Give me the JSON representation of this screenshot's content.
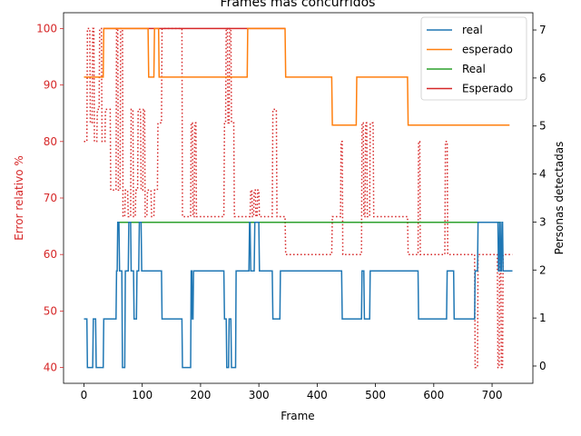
{
  "chart_data": {
    "type": "line",
    "title": "Frames más concurridos",
    "xlabel": "Frame",
    "ylabel_left": "Error relativo %",
    "ylabel_right": "Personas detectadas",
    "xlim": [
      -35,
      770
    ],
    "ylim_left": [
      37.2,
      102.8
    ],
    "ylim_right": [
      -0.36,
      7.36
    ],
    "x_ticks": [
      0,
      100,
      200,
      300,
      400,
      500,
      600,
      700
    ],
    "y_ticks_left": [
      40,
      50,
      60,
      70,
      80,
      90,
      100
    ],
    "y_ticks_right": [
      0,
      1,
      2,
      3,
      4,
      5,
      6,
      7
    ],
    "left_axis_color": "#d62728",
    "legend": {
      "placement": "top-right"
    },
    "series": [
      {
        "name": "real",
        "axis": "left",
        "color": "#1f77b4",
        "style": "solid",
        "x": [
          0,
          5,
          6,
          15,
          16,
          20,
          21,
          33,
          34,
          36,
          37,
          55,
          56,
          57,
          58,
          60,
          61,
          65,
          66,
          70,
          71,
          76,
          77,
          80,
          81,
          85,
          86,
          90,
          91,
          94,
          95,
          98,
          99,
          103,
          104,
          133,
          134,
          168,
          169,
          183,
          184,
          185,
          186,
          187,
          188,
          192,
          193,
          240,
          241,
          244,
          245,
          248,
          249,
          252,
          253,
          260,
          261,
          283,
          284,
          285,
          286,
          292,
          293,
          300,
          301,
          323,
          324,
          336,
          337,
          442,
          443,
          476,
          477,
          480,
          481,
          490,
          491,
          498,
          499,
          573,
          574,
          622,
          623,
          634,
          635,
          670,
          671,
          675,
          676,
          710,
          711,
          712,
          713,
          714,
          715,
          716,
          717,
          718,
          719,
          724,
          725,
          735
        ],
        "y": [
          48.6,
          48.6,
          40,
          40,
          48.6,
          48.6,
          40,
          40,
          48.6,
          48.6,
          48.6,
          48.6,
          57.1,
          57.1,
          65.7,
          65.7,
          57.1,
          57.1,
          40,
          40,
          57.1,
          57.1,
          65.7,
          65.7,
          57.1,
          57.1,
          48.6,
          48.6,
          57.1,
          57.1,
          65.7,
          65.7,
          57.1,
          57.1,
          57.1,
          57.1,
          48.6,
          48.6,
          40,
          40,
          57.1,
          57.1,
          48.6,
          48.6,
          57.1,
          57.1,
          57.1,
          57.1,
          48.6,
          48.6,
          40,
          40,
          48.6,
          48.6,
          40,
          40,
          57.1,
          57.1,
          65.7,
          65.7,
          57.1,
          57.1,
          65.7,
          65.7,
          57.1,
          57.1,
          48.6,
          48.6,
          57.1,
          57.1,
          48.6,
          48.6,
          57.1,
          57.1,
          48.6,
          48.6,
          57.1,
          57.1,
          57.1,
          57.1,
          48.6,
          48.6,
          57.1,
          57.1,
          48.6,
          48.6,
          57.1,
          57.1,
          65.7,
          65.7,
          57.1,
          57.1,
          65.7,
          65.7,
          57.1,
          57.1,
          65.7,
          65.7,
          57.1,
          57.1,
          57.1,
          57.1
        ]
      },
      {
        "name": "esperado",
        "axis": "left",
        "color": "#ff7f0e",
        "style": "solid",
        "x": [
          0,
          33,
          34,
          110,
          111,
          120,
          121,
          128,
          129,
          280,
          281,
          345,
          346,
          425,
          426,
          467,
          468,
          555,
          556,
          730
        ],
        "y": [
          91.4,
          91.4,
          100,
          100,
          91.4,
          91.4,
          100,
          100,
          91.4,
          91.4,
          100,
          100,
          91.4,
          91.4,
          82.9,
          82.9,
          91.4,
          91.4,
          82.9,
          82.9
        ]
      },
      {
        "name": "Real",
        "axis": "left",
        "color": "#2ca02c",
        "style": "solid",
        "x": [
          57,
          715
        ],
        "y": [
          65.7,
          65.7
        ]
      },
      {
        "name": "Esperado",
        "axis": "left",
        "color": "#d62728",
        "style": "solid",
        "x": [
          33,
          345
        ],
        "y": [
          100,
          100
        ]
      },
      {
        "name": "",
        "axis": "left",
        "color": "#d62728",
        "style": "dotted",
        "x": [
          0,
          5,
          6,
          10,
          11,
          14,
          15,
          17,
          18,
          22,
          23,
          26,
          27,
          30,
          31,
          36,
          37,
          45,
          46,
          55,
          56,
          58,
          59,
          62,
          63,
          66,
          67,
          70,
          71,
          75,
          76,
          80,
          81,
          84,
          85,
          88,
          89,
          92,
          93,
          97,
          98,
          101,
          102,
          104,
          105,
          108,
          109,
          115,
          116,
          120,
          121,
          126,
          127,
          133,
          134,
          168,
          169,
          183,
          184,
          186,
          187,
          189,
          190,
          192,
          193,
          195,
          196,
          240,
          241,
          243,
          244,
          246,
          247,
          249,
          250,
          252,
          253,
          257,
          258,
          285,
          286,
          288,
          289,
          291,
          292,
          294,
          295,
          297,
          298,
          300,
          301,
          304,
          305,
          323,
          324,
          330,
          331,
          345,
          346,
          425,
          426,
          440,
          441,
          443,
          444,
          476,
          477,
          479,
          480,
          482,
          483,
          485,
          486,
          490,
          491,
          496,
          497,
          555,
          556,
          573,
          574,
          576,
          577,
          619,
          620,
          623,
          624,
          626,
          627,
          670,
          671,
          675,
          676,
          709,
          710,
          712,
          713,
          715,
          716,
          718,
          719,
          722,
          723,
          735
        ],
        "y": [
          80,
          80,
          100,
          100,
          83.3,
          83.3,
          100,
          100,
          80,
          80,
          85.7,
          85.7,
          100,
          100,
          80,
          80,
          85.7,
          85.7,
          71.4,
          71.4,
          100,
          100,
          71.4,
          71.4,
          100,
          100,
          66.7,
          66.7,
          71.4,
          71.4,
          66.7,
          66.7,
          85.7,
          85.7,
          66.7,
          66.7,
          71.4,
          71.4,
          85.7,
          85.7,
          71.4,
          71.4,
          85.7,
          85.7,
          66.7,
          66.7,
          71.4,
          71.4,
          66.7,
          66.7,
          71.4,
          71.4,
          83.3,
          83.3,
          100,
          100,
          66.7,
          66.7,
          83.3,
          83.3,
          66.7,
          66.7,
          83.3,
          83.3,
          66.7,
          66.7,
          66.7,
          66.7,
          83.3,
          83.3,
          100,
          100,
          83.3,
          83.3,
          100,
          100,
          83.3,
          83.3,
          66.7,
          66.7,
          71.4,
          71.4,
          66.7,
          66.7,
          71.4,
          71.4,
          66.7,
          66.7,
          71.4,
          71.4,
          66.7,
          66.7,
          66.7,
          66.7,
          85.7,
          85.7,
          66.7,
          66.7,
          60,
          60,
          66.7,
          66.7,
          80,
          80,
          60,
          60,
          83.3,
          83.3,
          66.7,
          66.7,
          83.3,
          83.3,
          66.7,
          66.7,
          83.3,
          83.3,
          66.7,
          66.7,
          60,
          60,
          80,
          80,
          60,
          60,
          80,
          80,
          60,
          60,
          60,
          60,
          40,
          40,
          60,
          60,
          40,
          40,
          60,
          60,
          40,
          40,
          60,
          60,
          60,
          60
        ]
      }
    ]
  }
}
